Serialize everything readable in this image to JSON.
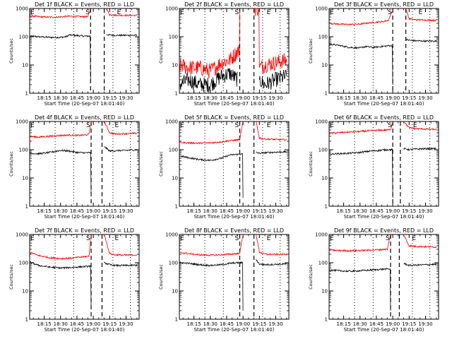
{
  "figure": {
    "layout": {
      "rows": 3,
      "cols": 3
    },
    "panel_titles": [
      "Det 1f BLACK = Events, RED = LLD",
      "Det 2f BLACK = Events, RED = LLD",
      "Det 3f BLACK = Events, RED = LLD",
      "Det 4f BLACK = Events, RED = LLD",
      "Det 5f BLACK = Events, RED = LLD",
      "Det 6f BLACK = Events, RED = LLD",
      "Det 7f BLACK = Events, RED = LLD",
      "Det 8f BLACK = Events, RED = LLD",
      "Det 9f BLACK = Events, RED = LLD"
    ],
    "xlabel": "Start Time (20-Sep-07 18:01:40)",
    "ylabel": "Counts/sec",
    "y_scale": "log",
    "ylim": [
      1,
      1000
    ],
    "y_tick_labels": [
      "1",
      "10",
      "100",
      "1000"
    ],
    "x_tick_labels": [
      "18:15",
      "18:30",
      "18:45",
      "19:00",
      "19:15",
      "19:30"
    ],
    "x_tick_minutes": [
      15,
      30,
      45,
      60,
      75,
      90
    ],
    "xlim_minutes": [
      1.67,
      102
    ],
    "markers": {
      "start": "E",
      "saa": "S",
      "end": "E"
    },
    "series_colors": {
      "events": "#000000",
      "lld": "#ff0000"
    }
  },
  "chart_data": [
    {
      "type": "line",
      "title": "Det 1f BLACK = Events, RED = LLD",
      "xlabel": "Start Time (20-Sep-07 18:01:40)",
      "ylabel": "Counts/sec",
      "ylim": [
        1,
        1000
      ],
      "x_minutes": [
        2,
        10,
        20,
        30,
        35,
        38,
        45,
        52,
        55,
        57.5,
        60,
        65,
        72,
        75,
        80,
        90,
        100
      ],
      "series": [
        {
          "name": "BLACK = Events",
          "values": [
            105,
            100,
            95,
            95,
            100,
            115,
            110,
            105,
            105,
            3,
            null,
            null,
            120,
            115,
            112,
            112,
            112
          ]
        },
        {
          "name": "RED = LLD",
          "values": [
            550,
            510,
            490,
            500,
            520,
            530,
            520,
            510,
            510,
            1000,
            null,
            null,
            1000,
            600,
            580,
            570,
            570
          ]
        }
      ],
      "vlines_dotted_minutes": [
        25,
        42,
        78,
        94
      ],
      "vlines_dashed_minutes": [
        57.5,
        70
      ]
    },
    {
      "type": "line",
      "title": "Det 2f BLACK = Events, RED = LLD",
      "xlabel": "Start Time (20-Sep-07 18:01:40)",
      "ylabel": "Counts/sec",
      "ylim": [
        1,
        1000
      ],
      "x_minutes": [
        2,
        10,
        20,
        30,
        40,
        48,
        55,
        57,
        60,
        65,
        70,
        75,
        80,
        90,
        100
      ],
      "series": [
        {
          "name": "BLACK = Events",
          "values": [
            2,
            3,
            2,
            2,
            4,
            5,
            3,
            null,
            null,
            null,
            null,
            3,
            2,
            3,
            4
          ]
        },
        {
          "name": "RED = LLD",
          "values": [
            10,
            8,
            8,
            6,
            12,
            15,
            30,
            800,
            null,
            null,
            1000,
            8,
            10,
            12,
            15
          ]
        }
      ],
      "vlines_dotted_minutes": [
        25,
        42,
        78,
        94
      ],
      "vlines_dashed_minutes": [
        57,
        70
      ]
    },
    {
      "type": "line",
      "title": "Det 3f BLACK = Events, RED = LLD",
      "xlabel": "Start Time (20-Sep-07 18:01:40)",
      "ylabel": "Counts/sec",
      "ylim": [
        1,
        1000
      ],
      "x_minutes": [
        2,
        10,
        20,
        30,
        35,
        42,
        50,
        56,
        60,
        65,
        70,
        72,
        75,
        80,
        90,
        100
      ],
      "series": [
        {
          "name": "BLACK = Events",
          "values": [
            55,
            50,
            42,
            40,
            45,
            42,
            45,
            48,
            2,
            null,
            null,
            80,
            75,
            72,
            70,
            70
          ]
        },
        {
          "name": "RED = LLD",
          "values": [
            300,
            280,
            270,
            280,
            300,
            320,
            340,
            380,
            900,
            null,
            null,
            1000,
            430,
            400,
            390,
            380
          ]
        }
      ],
      "vlines_dotted_minutes": [
        25,
        42,
        78,
        94
      ],
      "vlines_dashed_minutes": [
        60,
        72
      ]
    },
    {
      "type": "line",
      "title": "Det 4f BLACK = Events, RED = LLD",
      "xlabel": "Start Time (20-Sep-07 18:01:40)",
      "ylabel": "Counts/sec",
      "ylim": [
        1,
        1000
      ],
      "x_minutes": [
        2,
        10,
        20,
        30,
        38,
        45,
        52,
        56,
        58,
        62,
        68,
        70,
        75,
        80,
        90,
        100
      ],
      "series": [
        {
          "name": "BLACK = Events",
          "values": [
            75,
            72,
            80,
            95,
            90,
            80,
            78,
            78,
            3,
            null,
            null,
            130,
            90,
            92,
            95,
            100
          ]
        },
        {
          "name": "RED = LLD",
          "values": [
            290,
            280,
            300,
            320,
            330,
            320,
            330,
            350,
            1000,
            null,
            null,
            1000,
            400,
            360,
            370,
            380
          ]
        }
      ],
      "vlines_dotted_minutes": [
        25,
        42,
        78,
        94
      ],
      "vlines_dashed_minutes": [
        58,
        68
      ]
    },
    {
      "type": "line",
      "title": "Det 5f BLACK = Events, RED = LLD",
      "xlabel": "Start Time (20-Sep-07 18:01:40)",
      "ylabel": "Counts/sec",
      "ylim": [
        1,
        1000
      ],
      "x_minutes": [
        2,
        10,
        20,
        30,
        40,
        48,
        54,
        57,
        60,
        65,
        70,
        72,
        75,
        80,
        90,
        100
      ],
      "series": [
        {
          "name": "BLACK = Events",
          "values": [
            60,
            52,
            45,
            42,
            50,
            65,
            68,
            70,
            2,
            null,
            null,
            80,
            75,
            78,
            82,
            85
          ]
        },
        {
          "name": "RED = LLD",
          "values": [
            180,
            175,
            170,
            175,
            190,
            210,
            220,
            230,
            1000,
            null,
            null,
            1000,
            260,
            240,
            230,
            225
          ]
        }
      ],
      "vlines_dotted_minutes": [
        25,
        42,
        78,
        94
      ],
      "vlines_dashed_minutes": [
        57,
        70
      ]
    },
    {
      "type": "line",
      "title": "Det 6f BLACK = Events, RED = LLD",
      "xlabel": "Start Time (20-Sep-07 18:01:40)",
      "ylabel": "Counts/sec",
      "ylim": [
        1,
        1000
      ],
      "x_minutes": [
        2,
        10,
        20,
        30,
        40,
        48,
        55,
        58,
        60,
        63,
        67,
        70,
        75,
        80,
        90,
        100
      ],
      "series": [
        {
          "name": "BLACK = Events",
          "values": [
            70,
            72,
            75,
            80,
            90,
            95,
            100,
            100,
            2,
            null,
            null,
            110,
            100,
            105,
            108,
            110
          ]
        },
        {
          "name": "RED = LLD",
          "values": [
            380,
            400,
            420,
            440,
            470,
            490,
            500,
            520,
            1000,
            null,
            null,
            1000,
            600,
            560,
            540,
            520
          ]
        }
      ],
      "vlines_dotted_minutes": [
        25,
        42,
        78,
        94
      ],
      "vlines_dashed_minutes": [
        60,
        67
      ]
    },
    {
      "type": "line",
      "title": "Det 7f BLACK = Events, RED = LLD",
      "xlabel": "Start Time (20-Sep-07 18:01:40)",
      "ylabel": "Counts/sec",
      "ylim": [
        1,
        1000
      ],
      "x_minutes": [
        2,
        10,
        20,
        30,
        40,
        50,
        56,
        58,
        62,
        68,
        70,
        75,
        80,
        90,
        100
      ],
      "series": [
        {
          "name": "BLACK = Events",
          "values": [
            105,
            80,
            70,
            65,
            68,
            72,
            75,
            3,
            null,
            null,
            100,
            85,
            80,
            80,
            82
          ]
        },
        {
          "name": "RED = LLD",
          "values": [
            230,
            180,
            150,
            140,
            145,
            160,
            170,
            1000,
            null,
            null,
            1000,
            210,
            190,
            185,
            190
          ]
        }
      ],
      "vlines_dotted_minutes": [
        25,
        42,
        78,
        94
      ],
      "vlines_dashed_minutes": [
        58,
        68
      ]
    },
    {
      "type": "line",
      "title": "Det 8f BLACK = Events, RED = LLD",
      "xlabel": "Start Time (20-Sep-07 18:01:40)",
      "ylabel": "Counts/sec",
      "ylim": [
        1,
        1000
      ],
      "x_minutes": [
        2,
        10,
        20,
        30,
        40,
        48,
        55,
        57,
        60,
        65,
        70,
        72,
        75,
        80,
        90,
        100
      ],
      "series": [
        {
          "name": "BLACK = Events",
          "values": [
            100,
            95,
            85,
            80,
            85,
            95,
            100,
            100,
            2,
            null,
            null,
            130,
            90,
            85,
            88,
            90
          ]
        },
        {
          "name": "RED = LLD",
          "values": [
            230,
            210,
            190,
            185,
            190,
            200,
            210,
            220,
            1000,
            null,
            null,
            1000,
            240,
            200,
            195,
            200
          ]
        }
      ],
      "vlines_dotted_minutes": [
        25,
        42,
        78,
        94
      ],
      "vlines_dashed_minutes": [
        57,
        70
      ]
    },
    {
      "type": "line",
      "title": "Det 9f BLACK = Events, RED = LLD",
      "xlabel": "Start Time (20-Sep-07 18:01:40)",
      "ylabel": "Counts/sec",
      "ylim": [
        1,
        1000
      ],
      "x_minutes": [
        2,
        10,
        20,
        30,
        40,
        48,
        55,
        58,
        61,
        66,
        70,
        75,
        80,
        90,
        100
      ],
      "series": [
        {
          "name": "BLACK = Events",
          "values": [
            55,
            52,
            50,
            52,
            55,
            58,
            60,
            2,
            null,
            null,
            95,
            80,
            82,
            85,
            88
          ]
        },
        {
          "name": "RED = LLD",
          "values": [
            280,
            270,
            265,
            270,
            280,
            290,
            300,
            1000,
            null,
            null,
            1000,
            400,
            380,
            370,
            360
          ]
        }
      ],
      "vlines_dotted_minutes": [
        25,
        42,
        78,
        94
      ],
      "vlines_dashed_minutes": [
        58,
        66
      ]
    }
  ]
}
